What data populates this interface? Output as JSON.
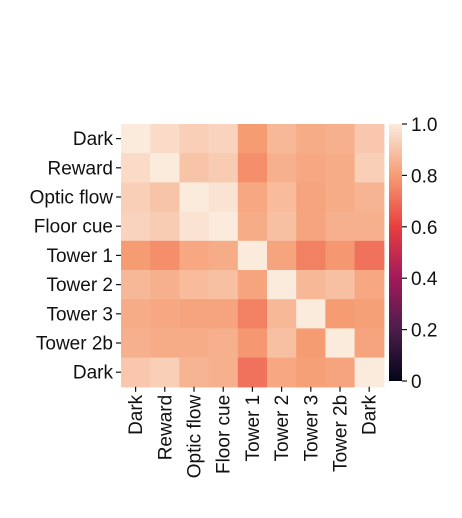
{
  "chart_data": {
    "type": "heatmap",
    "rows": [
      "Dark",
      "Reward",
      "Optic flow",
      "Floor cue",
      "Tower 1",
      "Tower 2",
      "Tower 3",
      "Tower 2b",
      "Dark"
    ],
    "columns": [
      "Dark",
      "Reward",
      "Optic flow",
      "Floor cue",
      "Tower 1",
      "Tower 2",
      "Tower 3",
      "Tower 2b",
      "Dark"
    ],
    "values": [
      [
        1.0,
        0.96,
        0.93,
        0.94,
        0.8,
        0.87,
        0.84,
        0.85,
        0.91
      ],
      [
        0.96,
        1.0,
        0.9,
        0.92,
        0.77,
        0.85,
        0.83,
        0.84,
        0.93
      ],
      [
        0.93,
        0.9,
        1.0,
        0.98,
        0.83,
        0.88,
        0.82,
        0.84,
        0.86
      ],
      [
        0.94,
        0.92,
        0.98,
        1.0,
        0.84,
        0.89,
        0.82,
        0.85,
        0.85
      ],
      [
        0.8,
        0.77,
        0.83,
        0.84,
        1.0,
        0.82,
        0.74,
        0.79,
        0.71
      ],
      [
        0.87,
        0.85,
        0.88,
        0.89,
        0.82,
        1.0,
        0.87,
        0.89,
        0.83
      ],
      [
        0.84,
        0.83,
        0.82,
        0.82,
        0.74,
        0.87,
        1.0,
        0.8,
        0.81
      ],
      [
        0.85,
        0.84,
        0.84,
        0.85,
        0.79,
        0.89,
        0.8,
        1.0,
        0.82
      ],
      [
        0.91,
        0.93,
        0.86,
        0.85,
        0.71,
        0.83,
        0.81,
        0.82,
        1.0
      ]
    ],
    "colorbar": {
      "min": 0,
      "max": 1.0,
      "ticks": [
        "0",
        "0.2",
        "0.4",
        "0.6",
        "0.8",
        "1.0"
      ],
      "colormap": "rocket",
      "colors": [
        "#03051a",
        "#4c1d4b",
        "#a11a5b",
        "#e83f3f",
        "#f69c73",
        "#faebdd"
      ]
    }
  }
}
